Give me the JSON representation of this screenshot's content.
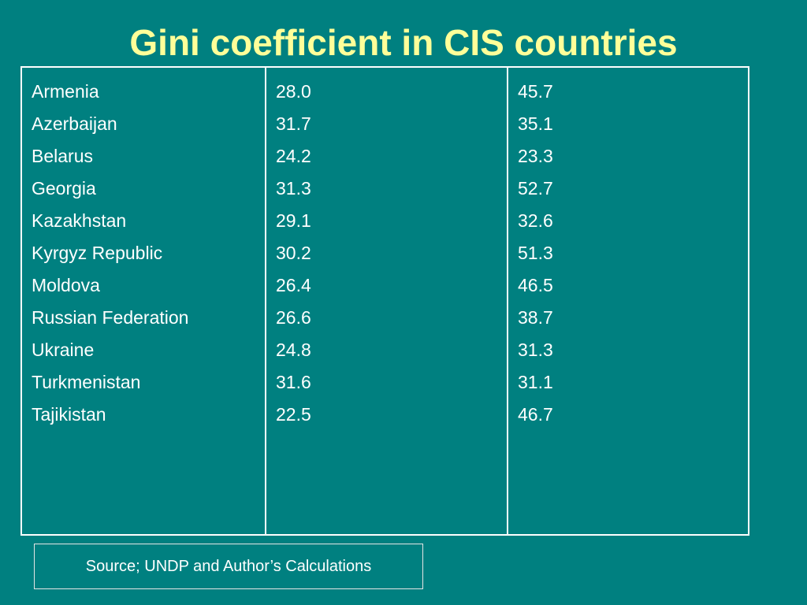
{
  "slide": {
    "title": "Gini coefficient in CIS countries",
    "source": "Source; UNDP and Author’s Calculations"
  },
  "table": {
    "countries": [
      "Armenia",
      "Azerbaijan",
      "Belarus",
      "Georgia",
      "Kazakhstan",
      "Kyrgyz Republic",
      "Moldova",
      "Russian Federation",
      "Ukraine",
      "Turkmenistan",
      "Tajikistan"
    ],
    "values_col1": [
      "28.0",
      "31.7",
      "24.2",
      "31.3",
      "29.1",
      "30.2",
      "26.4",
      "26.6",
      "24.8",
      "31.6",
      "22.5"
    ],
    "values_col2": [
      "45.7",
      "35.1",
      "23.3",
      "52.7",
      "32.6",
      "51.3",
      "46.5",
      "38.7",
      "31.3",
      "31.1",
      "46.7"
    ]
  },
  "colors": {
    "background": "#008080",
    "title": "#ffff99",
    "text": "#ffffff"
  }
}
